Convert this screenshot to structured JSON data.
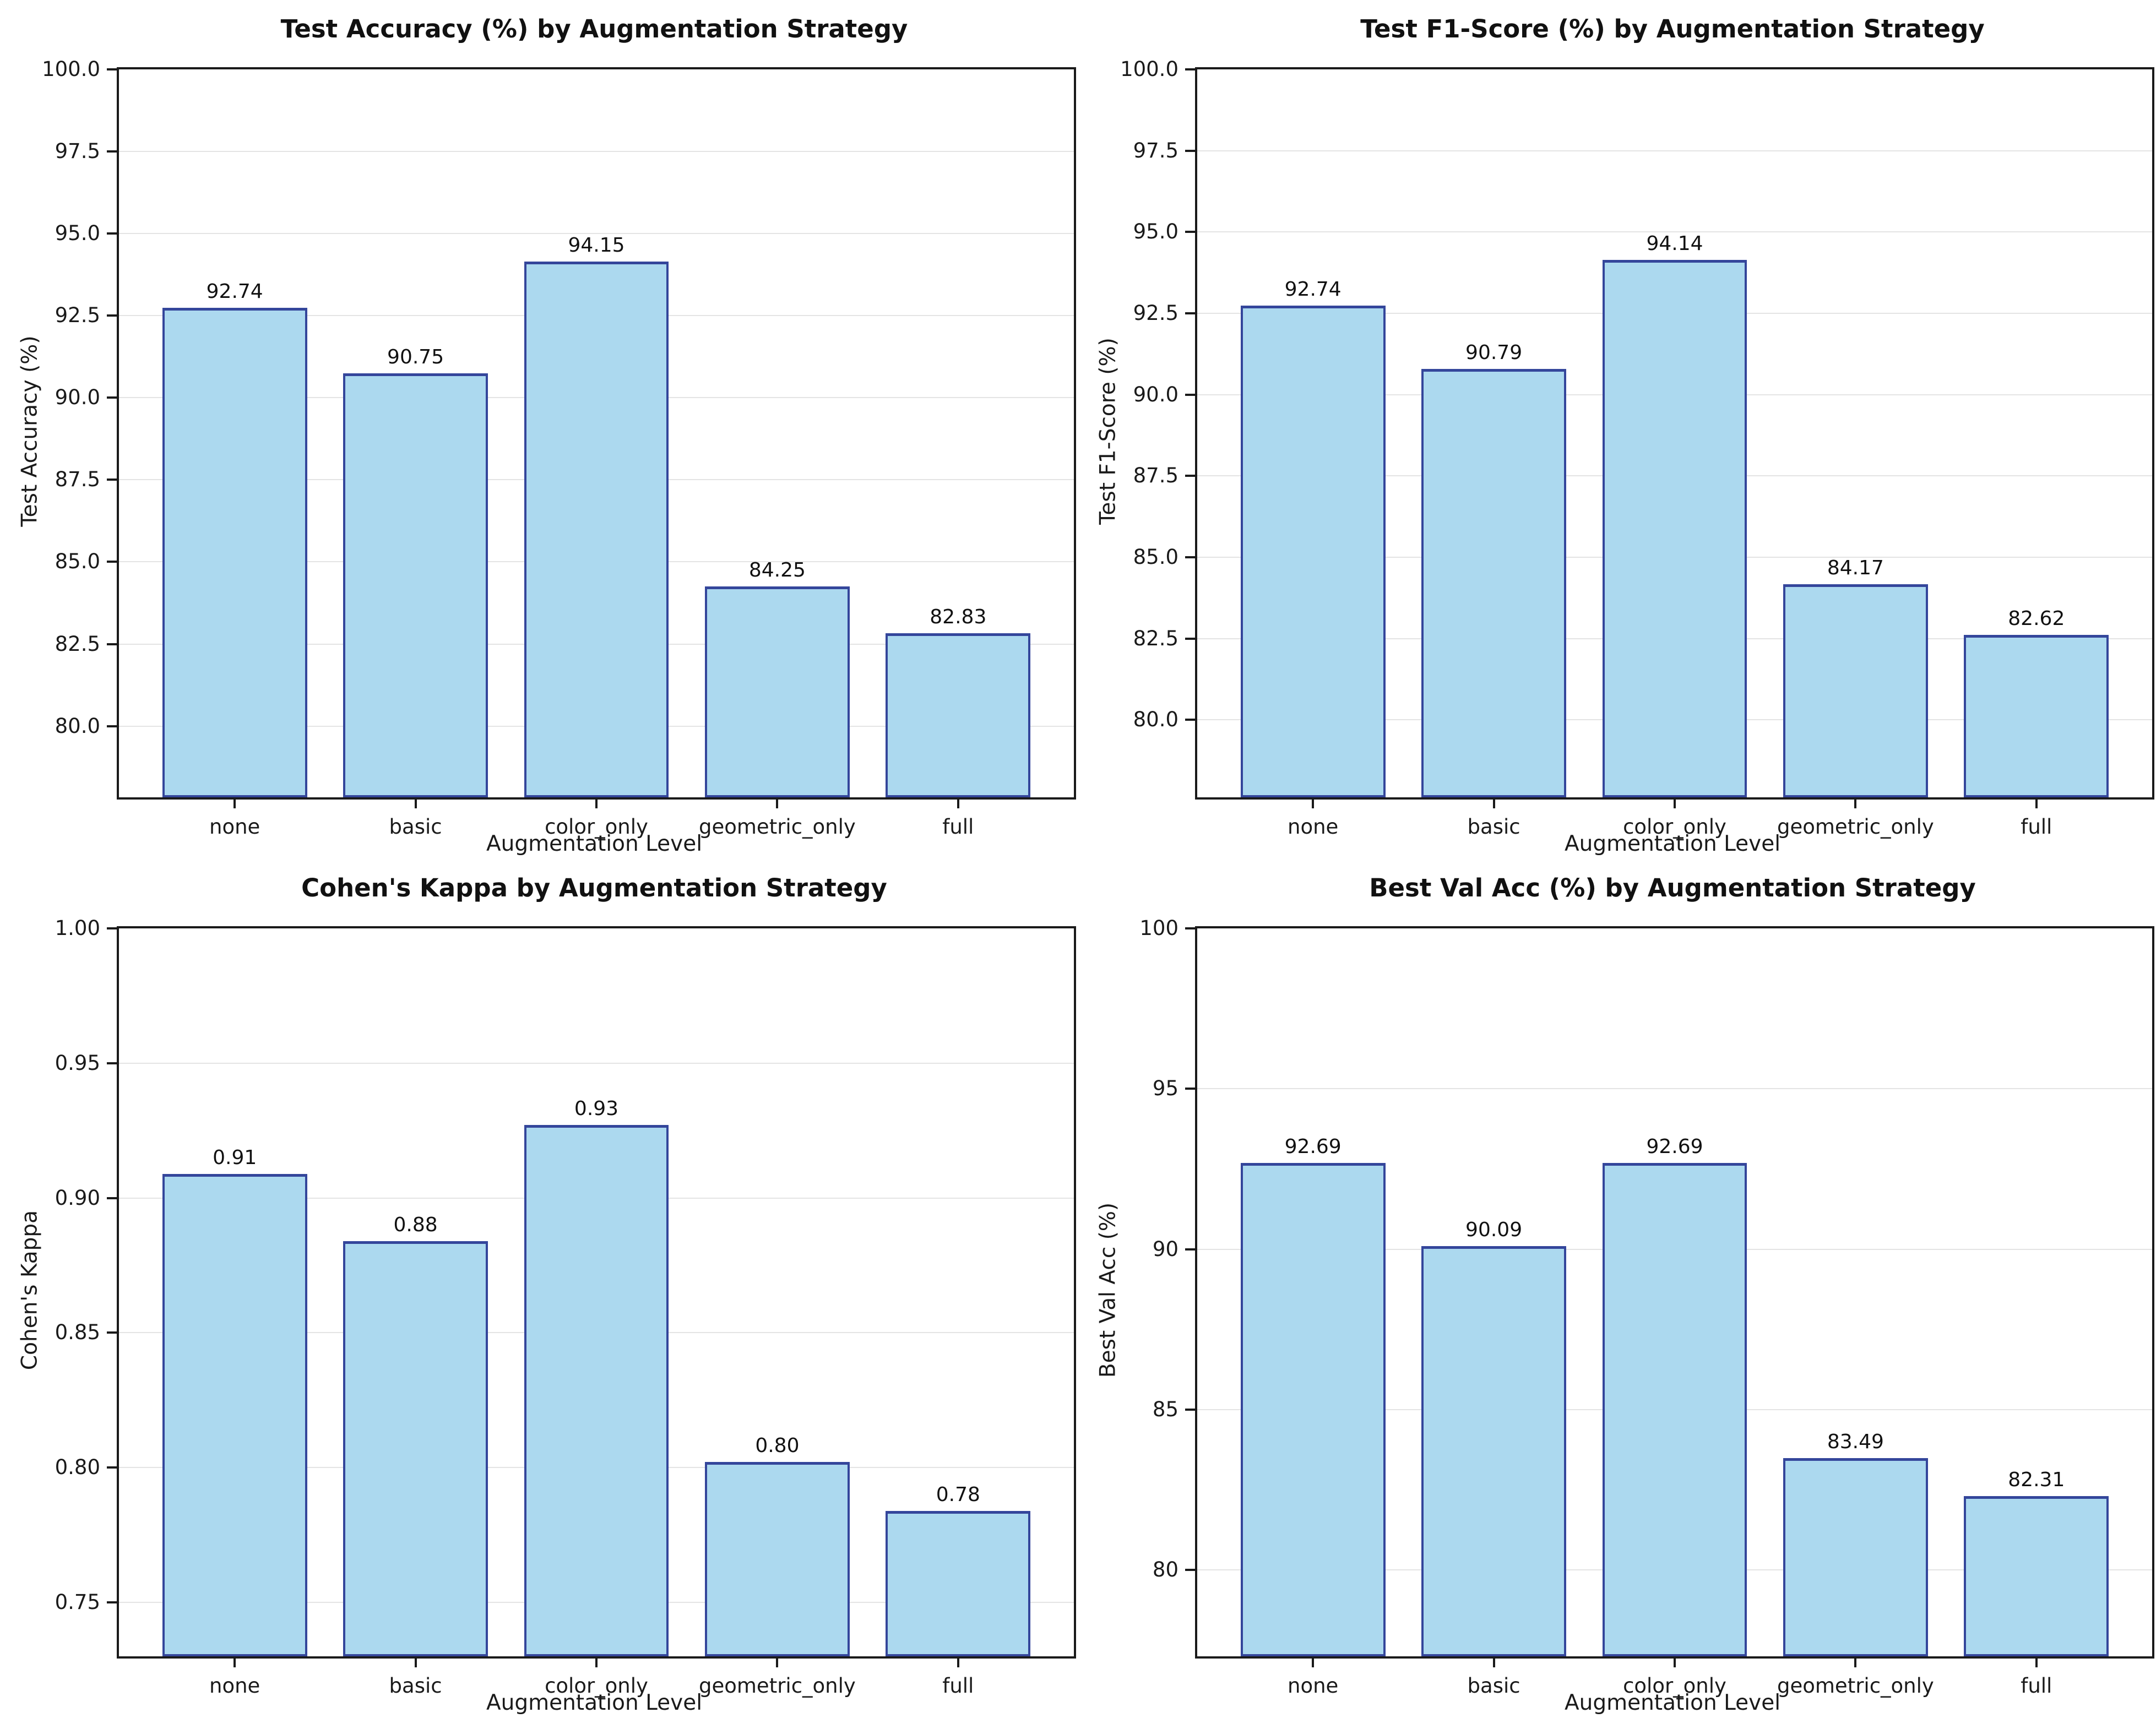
{
  "style": {
    "bar_fill": "#ACD9EF",
    "bar_edge": "#34469B",
    "grid_color": "#e4e4e4",
    "spine_color": "#1a1a1a",
    "text_color": "#1a1a1a",
    "background": "#ffffff"
  },
  "layout": {
    "rows": 2,
    "cols": 2,
    "xlim": [
      -0.64,
      4.64
    ],
    "bar_width": 0.8,
    "grid": "horizontal",
    "legend": "none"
  },
  "chart_data": [
    {
      "type": "bar",
      "title": "Test Accuracy (%) by Augmentation Strategy",
      "xlabel": "Augmentation Level",
      "ylabel": "Test Accuracy (%)",
      "categories": [
        "none",
        "basic",
        "color_only",
        "geometric_only",
        "full"
      ],
      "values": [
        92.74,
        90.75,
        94.15,
        84.25,
        82.83
      ],
      "bar_labels": [
        "92.74",
        "90.75",
        "94.15",
        "84.25",
        "82.83"
      ],
      "ylim": [
        77.83,
        100.0
      ],
      "yticks": [
        {
          "value": 80.0,
          "label": "80.0"
        },
        {
          "value": 82.5,
          "label": "82.5"
        },
        {
          "value": 85.0,
          "label": "85.0"
        },
        {
          "value": 87.5,
          "label": "87.5"
        },
        {
          "value": 90.0,
          "label": "90.0"
        },
        {
          "value": 92.5,
          "label": "92.5"
        },
        {
          "value": 95.0,
          "label": "95.0"
        },
        {
          "value": 97.5,
          "label": "97.5"
        },
        {
          "value": 100.0,
          "label": "100.0"
        }
      ]
    },
    {
      "type": "bar",
      "title": "Test F1-Score (%) by Augmentation Strategy",
      "xlabel": "Augmentation Level",
      "ylabel": "Test F1-Score (%)",
      "categories": [
        "none",
        "basic",
        "color_only",
        "geometric_only",
        "full"
      ],
      "values": [
        92.74,
        90.79,
        94.14,
        84.17,
        82.62
      ],
      "bar_labels": [
        "92.74",
        "90.79",
        "94.14",
        "84.17",
        "82.62"
      ],
      "ylim": [
        77.62,
        100.0
      ],
      "yticks": [
        {
          "value": 80.0,
          "label": "80.0"
        },
        {
          "value": 82.5,
          "label": "82.5"
        },
        {
          "value": 85.0,
          "label": "85.0"
        },
        {
          "value": 87.5,
          "label": "87.5"
        },
        {
          "value": 90.0,
          "label": "90.0"
        },
        {
          "value": 92.5,
          "label": "92.5"
        },
        {
          "value": 95.0,
          "label": "95.0"
        },
        {
          "value": 97.5,
          "label": "97.5"
        },
        {
          "value": 100.0,
          "label": "100.0"
        }
      ]
    },
    {
      "type": "bar",
      "title": "Cohen's Kappa by Augmentation Strategy",
      "xlabel": "Augmentation Level",
      "ylabel": "Cohen's Kappa",
      "categories": [
        "none",
        "basic",
        "color_only",
        "geometric_only",
        "full"
      ],
      "values": [
        0.909,
        0.884,
        0.927,
        0.802,
        0.784
      ],
      "bar_labels": [
        "0.91",
        "0.88",
        "0.93",
        "0.80",
        "0.78"
      ],
      "ylim": [
        0.73,
        1.0
      ],
      "yticks": [
        {
          "value": 0.75,
          "label": "0.75"
        },
        {
          "value": 0.8,
          "label": "0.80"
        },
        {
          "value": 0.85,
          "label": "0.85"
        },
        {
          "value": 0.9,
          "label": "0.90"
        },
        {
          "value": 0.95,
          "label": "0.95"
        },
        {
          "value": 1.0,
          "label": "1.00"
        }
      ]
    },
    {
      "type": "bar",
      "title": "Best Val Acc (%) by Augmentation Strategy",
      "xlabel": "Augmentation Level",
      "ylabel": "Best Val Acc (%)",
      "categories": [
        "none",
        "basic",
        "color_only",
        "geometric_only",
        "full"
      ],
      "values": [
        92.69,
        90.09,
        92.69,
        83.49,
        82.31
      ],
      "bar_labels": [
        "92.69",
        "90.09",
        "92.69",
        "83.49",
        "82.31"
      ],
      "ylim": [
        77.31,
        100.0
      ],
      "yticks": [
        {
          "value": 80,
          "label": "80"
        },
        {
          "value": 85,
          "label": "85"
        },
        {
          "value": 90,
          "label": "90"
        },
        {
          "value": 95,
          "label": "95"
        },
        {
          "value": 100,
          "label": "100"
        }
      ]
    }
  ]
}
